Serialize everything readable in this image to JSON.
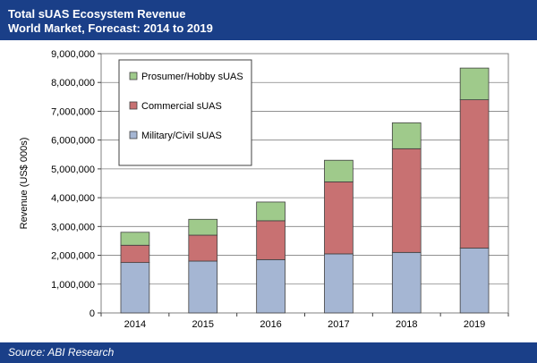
{
  "header": {
    "title": "Total sUAS Ecosystem Revenue",
    "subtitle": "World Market, Forecast: 2014 to 2019"
  },
  "footer": {
    "source": "Source: ABI Research"
  },
  "colors": {
    "banner": "#1a3f88",
    "military": "#a5b6d3",
    "commercial": "#c87172",
    "prosumer": "#9fca8b",
    "grid": "#808080"
  },
  "chart_data": {
    "type": "bar",
    "stacked": true,
    "categories": [
      "2014",
      "2015",
      "2016",
      "2017",
      "2018",
      "2019"
    ],
    "series": [
      {
        "name": "Military/Civil sUAS",
        "values": [
          1750000,
          1800000,
          1850000,
          2050000,
          2100000,
          2250000
        ],
        "color": "#a5b6d3"
      },
      {
        "name": "Commercial sUAS",
        "values": [
          600000,
          900000,
          1350000,
          2500000,
          3600000,
          5150000
        ],
        "color": "#c87172"
      },
      {
        "name": "Prosumer/Hobby sUAS",
        "values": [
          450000,
          550000,
          650000,
          750000,
          900000,
          1100000
        ],
        "color": "#9fca8b"
      }
    ],
    "ylabel": "Revenue (US$ 000s)",
    "ylim": [
      0,
      9000000
    ],
    "yticks": [
      0,
      1000000,
      2000000,
      3000000,
      4000000,
      5000000,
      6000000,
      7000000,
      8000000,
      9000000
    ],
    "ytick_labels": [
      "0",
      "1,000,000",
      "2,000,000",
      "3,000,000",
      "4,000,000",
      "5,000,000",
      "6,000,000",
      "7,000,000",
      "8,000,000",
      "9,000,000"
    ],
    "grid": true,
    "legend_position": "top-left",
    "legend_order": [
      "Prosumer/Hobby sUAS",
      "Commercial sUAS",
      "Military/Civil sUAS"
    ]
  }
}
